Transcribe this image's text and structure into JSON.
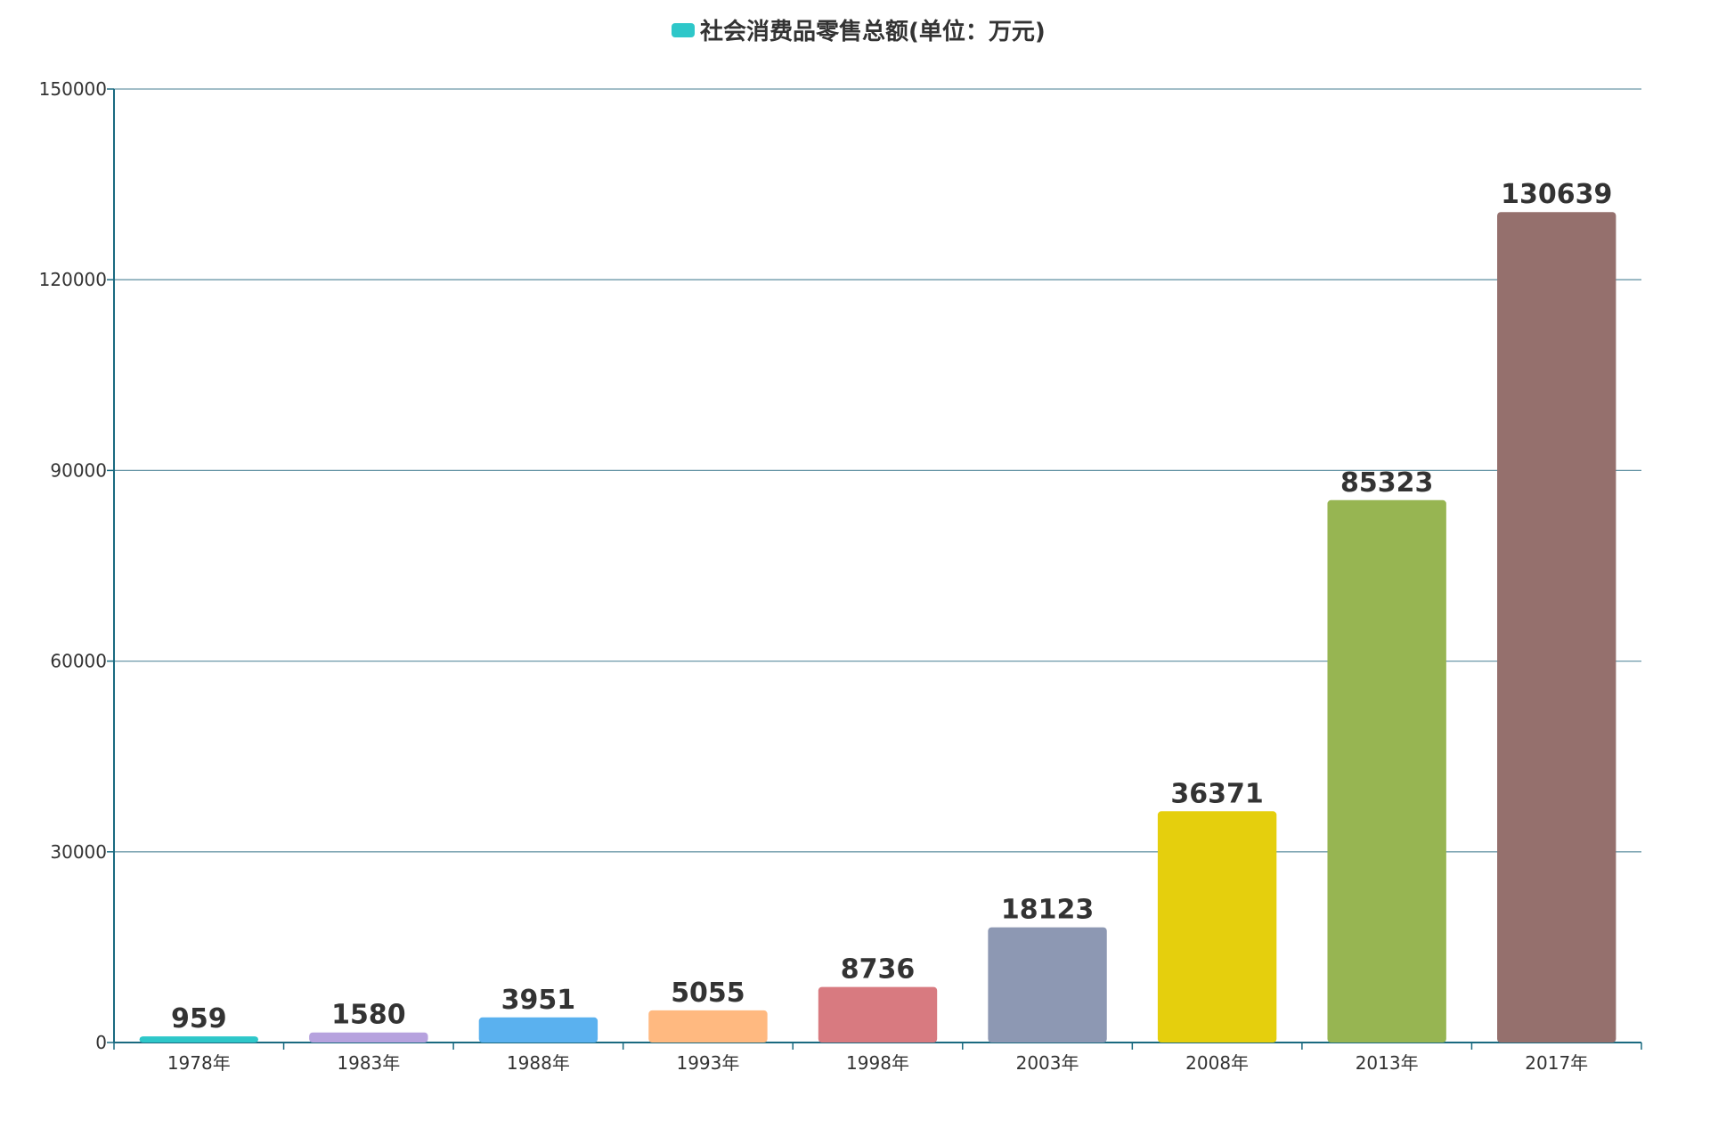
{
  "chart_data": {
    "type": "bar",
    "categories": [
      "1978年",
      "1983年",
      "1988年",
      "1993年",
      "1998年",
      "2003年",
      "2008年",
      "2013年",
      "2017年"
    ],
    "series": [
      {
        "name": "社会消费品零售总额(单位：万元)",
        "values": [
          959,
          1580,
          3951,
          5055,
          8736,
          18123,
          36371,
          85323,
          130639
        ]
      }
    ],
    "bar_colors": [
      "#2ec7c9",
      "#b6a2de",
      "#5ab1ef",
      "#ffb980",
      "#d87a80",
      "#8d98b3",
      "#e5cf0d",
      "#97b552",
      "#95706d"
    ],
    "legend_color": "#2ec7c9",
    "axis_color": "#1a6a80",
    "grid_color": "#6b98a8",
    "ylim": [
      0,
      150000
    ],
    "yticks": [
      0,
      30000,
      60000,
      90000,
      120000,
      150000
    ],
    "ytick_labels": [
      "0",
      "30000",
      "60000",
      "90000",
      "120000",
      "150000"
    ],
    "grid": true,
    "legend_position": "top-center",
    "show_data_labels": true
  }
}
